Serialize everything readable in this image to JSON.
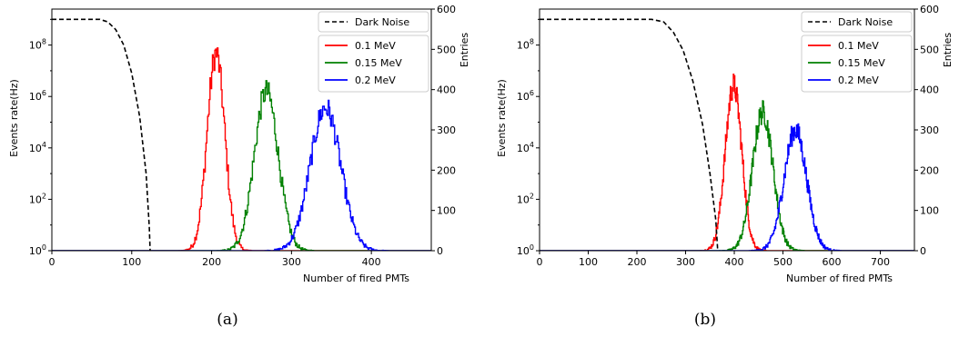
{
  "chart_data": [
    {
      "type": "line",
      "caption": "(a)",
      "xlabel": "Number of fired PMTs",
      "ylabel_left": "Events rate(Hz)",
      "ylabel_right": "Entries",
      "xlim": [
        0,
        475
      ],
      "xticks": [
        0,
        100,
        200,
        300,
        400
      ],
      "ylim_left_log10": [
        0,
        9.4
      ],
      "yticks_left_exp": [
        0,
        2,
        4,
        6,
        8
      ],
      "ylim_right": [
        0,
        600
      ],
      "yticks_right": [
        0,
        100,
        200,
        300,
        400,
        500,
        600
      ],
      "legend_placement": "top-right",
      "dark_noise": {
        "name": "Dark Noise",
        "axis": "left",
        "style": "dashed",
        "color": "#000000",
        "points": [
          [
            0,
            9.0
          ],
          [
            60,
            9.0
          ],
          [
            70,
            8.9
          ],
          [
            80,
            8.6
          ],
          [
            90,
            8.0
          ],
          [
            100,
            6.9
          ],
          [
            110,
            5.2
          ],
          [
            118,
            3.0
          ],
          [
            122,
            0.9
          ],
          [
            123,
            0
          ]
        ]
      },
      "series": [
        {
          "name": "0.1 MeV",
          "color": "#ff0000",
          "axis": "right",
          "mean": 205,
          "sigma": 11,
          "peak": 490
        },
        {
          "name": "0.15 MeV",
          "color": "#008000",
          "axis": "right",
          "mean": 268,
          "sigma": 15,
          "peak": 395
        },
        {
          "name": "0.2 MeV",
          "color": "#0000ff",
          "axis": "right",
          "mean": 342,
          "sigma": 19,
          "peak": 355
        }
      ]
    },
    {
      "type": "line",
      "caption": "(b)",
      "xlabel": "Number of fired PMTs",
      "ylabel_left": "Events rate(Hz)",
      "ylabel_right": "Entries",
      "xlim": [
        0,
        770
      ],
      "xticks": [
        0,
        100,
        200,
        300,
        400,
        500,
        600,
        700
      ],
      "ylim_left_log10": [
        0,
        9.4
      ],
      "yticks_left_exp": [
        0,
        2,
        4,
        6,
        8
      ],
      "ylim_right": [
        0,
        600
      ],
      "yticks_right": [
        0,
        100,
        200,
        300,
        400,
        500,
        600
      ],
      "legend_placement": "top-right",
      "dark_noise": {
        "name": "Dark Noise",
        "axis": "left",
        "style": "dashed",
        "color": "#000000",
        "points": [
          [
            0,
            9.0
          ],
          [
            230,
            9.0
          ],
          [
            255,
            8.9
          ],
          [
            275,
            8.5
          ],
          [
            295,
            7.8
          ],
          [
            315,
            6.6
          ],
          [
            335,
            4.9
          ],
          [
            350,
            3.0
          ],
          [
            362,
            1.2
          ],
          [
            366,
            0
          ]
        ]
      },
      "series": [
        {
          "name": "0.1 MeV",
          "color": "#ff0000",
          "axis": "right",
          "mean": 398,
          "sigma": 17,
          "peak": 410
        },
        {
          "name": "0.15 MeV",
          "color": "#008000",
          "axis": "right",
          "mean": 458,
          "sigma": 21,
          "peak": 345
        },
        {
          "name": "0.2 MeV",
          "color": "#0000ff",
          "axis": "right",
          "mean": 525,
          "sigma": 23,
          "peak": 300
        }
      ]
    }
  ]
}
